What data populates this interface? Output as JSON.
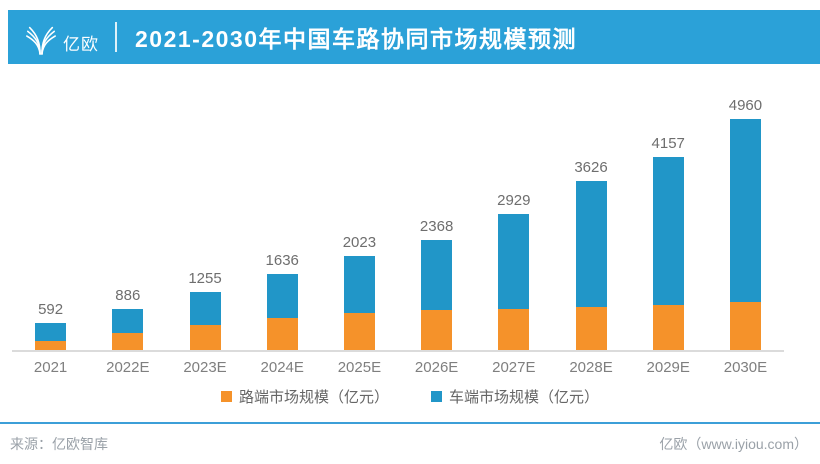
{
  "header": {
    "logo_text": "亿欧",
    "title": "2021-2030年中国车路协同市场规模预测"
  },
  "chart_data": {
    "type": "bar",
    "subtype": "stacked",
    "title": "2021-2030年中国车路协同市场规模预测",
    "unit": "亿元",
    "categories": [
      "2021",
      "2022E",
      "2023E",
      "2024E",
      "2025E",
      "2026E",
      "2027E",
      "2028E",
      "2029E",
      "2030E"
    ],
    "totals_labeled": [
      592,
      886,
      1255,
      1636,
      2023,
      2368,
      2929,
      3626,
      4157,
      4960
    ],
    "series": [
      {
        "name": "路端市场规模（亿元）",
        "color": "#F5922A",
        "values_estimated": true,
        "values": [
          200,
          365,
          545,
          690,
          795,
          865,
          890,
          925,
          975,
          1025
        ]
      },
      {
        "name": "车端市场规模（亿元）",
        "color": "#2196C8",
        "values_estimated": true,
        "values": [
          392,
          521,
          710,
          946,
          1228,
          1503,
          2039,
          2701,
          3182,
          3935
        ]
      }
    ],
    "ylim": [
      0,
      5600
    ],
    "grid": false,
    "value_labels": "totals above bars",
    "legend_position": "bottom"
  },
  "legend": {
    "items": [
      {
        "label": "路端市场规模（亿元）",
        "color": "#F5922A"
      },
      {
        "label": "车端市场规模（亿元）",
        "color": "#2196C8"
      }
    ]
  },
  "footer": {
    "source": "来源：亿欧智库",
    "brand": "亿欧（www.iyiou.com）"
  },
  "colors": {
    "header_bg": "#2BA1D8",
    "bar_blue": "#2196C8",
    "bar_orange": "#F5922A",
    "axis_line": "#DBDBDB",
    "footer_line": "#3C9FD8"
  }
}
